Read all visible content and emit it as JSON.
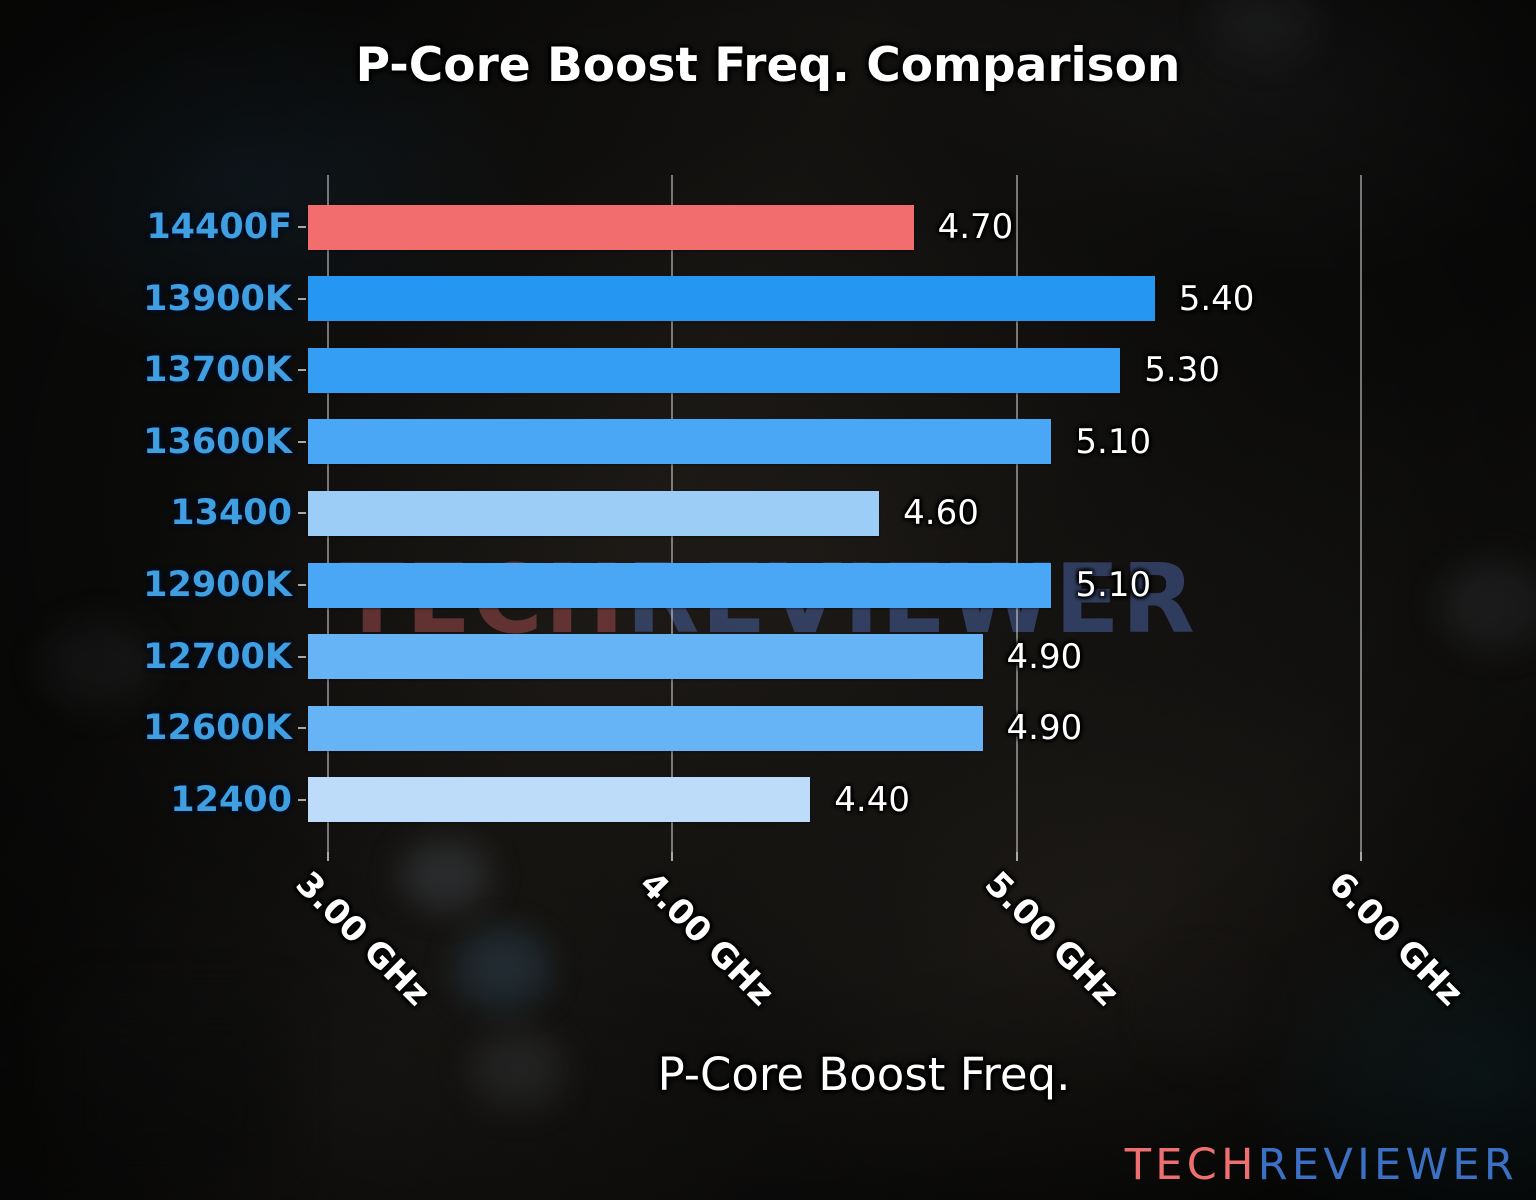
{
  "chart_data": {
    "type": "bar",
    "orientation": "horizontal",
    "title": "P-Core Boost Freq. Comparison",
    "xlabel": "P-Core Boost Freq.",
    "categories": [
      "14400F",
      "13900K",
      "13700K",
      "13600K",
      "13400",
      "12900K",
      "12700K",
      "12600K",
      "12400"
    ],
    "values": [
      4.7,
      5.4,
      5.3,
      5.1,
      4.6,
      5.1,
      4.9,
      4.9,
      4.4
    ],
    "value_labels": [
      "4.70",
      "5.40",
      "5.30",
      "5.10",
      "4.60",
      "5.10",
      "4.90",
      "4.90",
      "4.40"
    ],
    "bar_colors": [
      "#f26d6e",
      "#2597f3",
      "#349ef4",
      "#4aa7f5",
      "#9ccdf6",
      "#4aa7f5",
      "#66b4f6",
      "#66b4f6",
      "#bcdcf9"
    ],
    "highlight_category": "14400F",
    "highlight_color": "#f26d6e",
    "category_label_color": "#3f9fe0",
    "xlim": [
      2.942,
      6.17
    ],
    "x_ticks": [
      {
        "value": 3.0,
        "label": "3.00 GHz"
      },
      {
        "value": 4.0,
        "label": "4.00 GHz"
      },
      {
        "value": 5.0,
        "label": "5.00 GHz"
      },
      {
        "value": 6.0,
        "label": "6.00 GHz"
      }
    ],
    "grid": true,
    "legend": "none",
    "unit": "GHz"
  },
  "watermark": {
    "part1": "TECH",
    "part2": "REVIEWER"
  },
  "logo": {
    "part1": "TECH",
    "part2": "REVIEWER",
    "color1": "#ee6f70",
    "color2": "#3b70c5"
  }
}
